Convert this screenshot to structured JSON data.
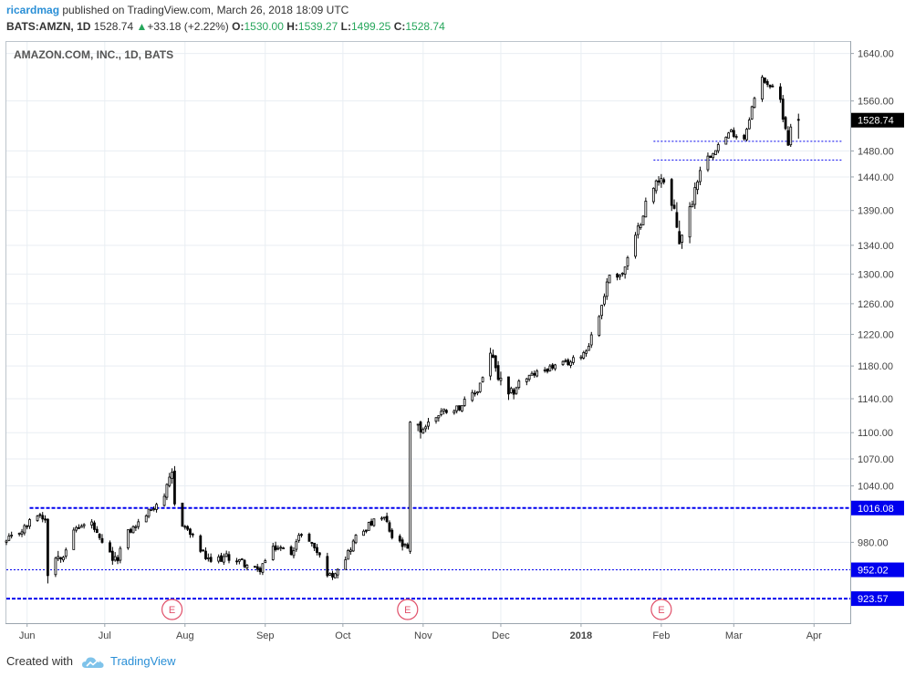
{
  "header": {
    "username": "ricardmag",
    "published_text": "published on TradingView.com, March 26, 2018 18:09 UTC",
    "symbol": "BATS:AMZN, 1D",
    "last": "1528.74",
    "change": "+33.18 (+2.22%)",
    "o_label": "O:",
    "o_value": "1530.00",
    "h_label": "H:",
    "h_value": "1539.27",
    "l_label": "L:",
    "l_value": "1499.25",
    "c_label": "C:",
    "c_value": "1528.74"
  },
  "footer": {
    "created_with": "Created with",
    "brand": "TradingView"
  },
  "colors": {
    "grid": "#e9eef3",
    "level": "#0000ee",
    "earnings": "#e0506a",
    "up_arrow": "#26a65b",
    "brand": "#2a8fd6"
  },
  "chart_data": {
    "type": "candlestick",
    "title": "AMAZON.COM, INC., 1D, BATS",
    "scale": "log",
    "ylim": [
      900,
      1660
    ],
    "y_ticks": [
      "1640.00",
      "1560.00",
      "1480.00",
      "1440.00",
      "1390.00",
      "1340.00",
      "1300.00",
      "1260.00",
      "1220.00",
      "1180.00",
      "1140.00",
      "1100.00",
      "1070.00",
      "1040.00",
      "980.00"
    ],
    "x_ticks": [
      "Jun",
      "Jul",
      "Aug",
      "Sep",
      "Oct",
      "Nov",
      "Dec",
      "2018",
      "Feb",
      "Mar",
      "Apr"
    ],
    "x_tick_dates": [
      "2017-06-01",
      "2017-07-01",
      "2017-08-01",
      "2017-09-01",
      "2017-10-01",
      "2017-11-01",
      "2017-12-01",
      "2018-01-01",
      "2018-02-01",
      "2018-03-01",
      "2018-04-01"
    ],
    "x_range": [
      "2017-05-24",
      "2018-04-15"
    ],
    "bold_x_tick": "2018",
    "last_price_label": "1528.74",
    "last_price": 1528.74,
    "levels": [
      {
        "value": 1016.08,
        "label": "1016.08",
        "style": "heavy",
        "start": "2017-06-02"
      },
      {
        "value": 952.02,
        "label": "952.02",
        "style": "thin",
        "start": "2017-05-24"
      },
      {
        "value": 923.57,
        "label": "923.57",
        "style": "heavy",
        "start": "2017-05-24"
      },
      {
        "value": 1495,
        "label": "",
        "style": "thin",
        "start": "2018-01-29",
        "end": "2018-04-12"
      },
      {
        "value": 1466,
        "label": "",
        "style": "thin",
        "start": "2018-01-29",
        "end": "2018-04-12"
      }
    ],
    "earnings": [
      {
        "date": "2017-07-27",
        "label": "E"
      },
      {
        "date": "2017-10-26",
        "label": "E"
      },
      {
        "date": "2018-02-01",
        "label": "E"
      }
    ],
    "anchors": [
      [
        "2017-05-24",
        980,
        10
      ],
      [
        "2017-05-31",
        995,
        8
      ],
      [
        "2017-06-05",
        1010,
        8
      ],
      [
        "2017-06-08",
        1005,
        10
      ],
      [
        "2017-06-09",
        955,
        25
      ],
      [
        "2017-06-12",
        965,
        14
      ],
      [
        "2017-06-15",
        970,
        12
      ],
      [
        "2017-06-20",
        995,
        8
      ],
      [
        "2017-06-26",
        1000,
        8
      ],
      [
        "2017-06-29",
        980,
        12
      ],
      [
        "2017-07-05",
        960,
        12
      ],
      [
        "2017-07-10",
        990,
        8
      ],
      [
        "2017-07-14",
        1000,
        8
      ],
      [
        "2017-07-19",
        1015,
        8
      ],
      [
        "2017-07-24",
        1030,
        8
      ],
      [
        "2017-07-27",
        1050,
        18
      ],
      [
        "2017-07-28",
        1020,
        18
      ],
      [
        "2017-07-31",
        1000,
        10
      ],
      [
        "2017-08-04",
        985,
        8
      ],
      [
        "2017-08-10",
        960,
        10
      ],
      [
        "2017-08-17",
        965,
        8
      ],
      [
        "2017-08-23",
        960,
        8
      ],
      [
        "2017-08-29",
        950,
        10
      ],
      [
        "2017-09-05",
        975,
        10
      ],
      [
        "2017-09-11",
        970,
        8
      ],
      [
        "2017-09-15",
        990,
        8
      ],
      [
        "2017-09-20",
        975,
        8
      ],
      [
        "2017-09-26",
        945,
        10
      ],
      [
        "2017-10-02",
        965,
        8
      ],
      [
        "2017-10-06",
        985,
        10
      ],
      [
        "2017-10-12",
        1000,
        8
      ],
      [
        "2017-10-17",
        1005,
        10
      ],
      [
        "2017-10-20",
        985,
        10
      ],
      [
        "2017-10-26",
        972,
        10
      ],
      [
        "2017-10-27",
        1100,
        40
      ],
      [
        "2017-11-01",
        1105,
        12
      ],
      [
        "2017-11-08",
        1125,
        10
      ],
      [
        "2017-11-15",
        1130,
        8
      ],
      [
        "2017-11-22",
        1150,
        10
      ],
      [
        "2017-11-27",
        1195,
        18
      ],
      [
        "2017-11-30",
        1165,
        20
      ],
      [
        "2017-12-04",
        1140,
        18
      ],
      [
        "2017-12-08",
        1160,
        12
      ],
      [
        "2017-12-14",
        1170,
        8
      ],
      [
        "2017-12-20",
        1178,
        8
      ],
      [
        "2017-12-28",
        1185,
        8
      ],
      [
        "2018-01-03",
        1200,
        10
      ],
      [
        "2018-01-08",
        1245,
        12
      ],
      [
        "2018-01-12",
        1300,
        12
      ],
      [
        "2018-01-17",
        1300,
        14
      ],
      [
        "2018-01-22",
        1350,
        14
      ],
      [
        "2018-01-26",
        1400,
        14
      ],
      [
        "2018-02-01",
        1445,
        25
      ],
      [
        "2018-02-05",
        1395,
        30
      ],
      [
        "2018-02-08",
        1350,
        40
      ],
      [
        "2018-02-12",
        1390,
        22
      ],
      [
        "2018-02-16",
        1455,
        18
      ],
      [
        "2018-02-22",
        1485,
        10
      ],
      [
        "2018-02-28",
        1510,
        12
      ],
      [
        "2018-03-05",
        1500,
        12
      ],
      [
        "2018-03-08",
        1550,
        10
      ],
      [
        "2018-03-12",
        1598,
        12
      ],
      [
        "2018-03-15",
        1585,
        10
      ],
      [
        "2018-03-19",
        1560,
        18
      ],
      [
        "2018-03-22",
        1495,
        20
      ],
      [
        "2018-03-23",
        1515,
        12
      ],
      [
        "2018-03-26",
        1528.74,
        20
      ]
    ]
  }
}
